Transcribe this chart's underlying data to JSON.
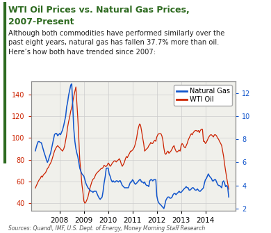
{
  "title_line1": "WTI Oil Prices vs. Natural Gas Prices,",
  "title_line2": "2007-Present",
  "subtitle": "Although both commodities have performed similarly over the\npast eight years, natural gas has fallen 37.7% more than oil.\nHere’s how both have trended since 2007:",
  "source_text": "Sources: Quandl, IMF, U.S. Dept. of Energy, Money Morning Staff Research",
  "title_color": "#2d6a1f",
  "subtitle_color": "#222222",
  "source_color": "#555555",
  "wti_color": "#cc2200",
  "gas_color": "#1155cc",
  "left_axis_color": "#cc2200",
  "right_axis_color": "#1155cc",
  "ylim_left": [
    33,
    152
  ],
  "ylim_right": [
    1.8,
    13.0
  ],
  "yticks_left": [
    40,
    60,
    80,
    100,
    120,
    140
  ],
  "yticks_right": [
    2,
    4,
    6,
    8,
    10,
    12
  ],
  "bg_color": "#f0f0eb",
  "grid_color": "#cccccc",
  "left_border_color": "#2d6a1f",
  "legend_gas": "Natural Gas",
  "legend_wti": "WTI Oil",
  "xlim": [
    2006.83,
    2015.25
  ],
  "xticks": [
    2008,
    2009,
    2010,
    2011,
    2012,
    2013,
    2014
  ],
  "wti_data": {
    "x": [
      2007.0,
      2007.04,
      2007.08,
      2007.12,
      2007.17,
      2007.21,
      2007.25,
      2007.29,
      2007.33,
      2007.37,
      2007.42,
      2007.46,
      2007.5,
      2007.54,
      2007.58,
      2007.63,
      2007.67,
      2007.71,
      2007.75,
      2007.79,
      2007.83,
      2007.88,
      2007.92,
      2007.96,
      2008.0,
      2008.04,
      2008.08,
      2008.12,
      2008.17,
      2008.21,
      2008.25,
      2008.29,
      2008.33,
      2008.37,
      2008.42,
      2008.46,
      2008.5,
      2008.54,
      2008.58,
      2008.63,
      2008.67,
      2008.71,
      2008.75,
      2008.79,
      2008.83,
      2008.88,
      2008.92,
      2008.96,
      2009.0,
      2009.04,
      2009.08,
      2009.12,
      2009.17,
      2009.21,
      2009.25,
      2009.29,
      2009.33,
      2009.37,
      2009.42,
      2009.46,
      2009.5,
      2009.54,
      2009.58,
      2009.63,
      2009.67,
      2009.71,
      2009.75,
      2009.79,
      2009.83,
      2009.88,
      2009.92,
      2009.96,
      2010.0,
      2010.04,
      2010.08,
      2010.12,
      2010.17,
      2010.21,
      2010.25,
      2010.29,
      2010.33,
      2010.37,
      2010.42,
      2010.46,
      2010.5,
      2010.54,
      2010.58,
      2010.63,
      2010.67,
      2010.71,
      2010.75,
      2010.79,
      2010.83,
      2010.88,
      2010.92,
      2010.96,
      2011.0,
      2011.04,
      2011.08,
      2011.12,
      2011.17,
      2011.21,
      2011.25,
      2011.29,
      2011.33,
      2011.37,
      2011.42,
      2011.46,
      2011.5,
      2011.54,
      2011.58,
      2011.63,
      2011.67,
      2011.71,
      2011.75,
      2011.79,
      2011.83,
      2011.88,
      2011.92,
      2011.96,
      2012.0,
      2012.04,
      2012.08,
      2012.12,
      2012.17,
      2012.21,
      2012.25,
      2012.29,
      2012.33,
      2012.37,
      2012.42,
      2012.46,
      2012.5,
      2012.54,
      2012.58,
      2012.63,
      2012.67,
      2012.71,
      2012.75,
      2012.79,
      2012.83,
      2012.88,
      2012.92,
      2012.96,
      2013.0,
      2013.04,
      2013.08,
      2013.12,
      2013.17,
      2013.21,
      2013.25,
      2013.29,
      2013.33,
      2013.37,
      2013.42,
      2013.46,
      2013.5,
      2013.54,
      2013.58,
      2013.63,
      2013.67,
      2013.71,
      2013.75,
      2013.79,
      2013.83,
      2013.88,
      2013.92,
      2013.96,
      2014.0,
      2014.04,
      2014.08,
      2014.12,
      2014.17,
      2014.21,
      2014.25,
      2014.29,
      2014.33,
      2014.37,
      2014.42,
      2014.46,
      2014.5,
      2014.54,
      2014.58,
      2014.63,
      2014.67,
      2014.71,
      2014.75,
      2014.79,
      2014.83,
      2014.88,
      2014.92,
      2014.96
    ],
    "y": [
      54,
      56,
      58,
      60,
      62,
      63,
      65,
      64,
      66,
      67,
      68,
      70,
      72,
      73,
      75,
      77,
      79,
      82,
      85,
      88,
      90,
      92,
      93,
      92,
      91,
      90,
      89,
      88,
      90,
      93,
      98,
      103,
      110,
      115,
      120,
      125,
      128,
      133,
      138,
      143,
      147,
      133,
      118,
      100,
      80,
      68,
      57,
      50,
      42,
      40,
      41,
      43,
      46,
      50,
      54,
      57,
      60,
      62,
      63,
      65,
      67,
      68,
      69,
      70,
      71,
      72,
      72,
      73,
      75,
      74,
      74,
      75,
      77,
      76,
      74,
      75,
      77,
      78,
      79,
      79,
      78,
      79,
      80,
      81,
      79,
      76,
      74,
      76,
      78,
      81,
      83,
      82,
      84,
      86,
      88,
      88,
      89,
      90,
      92,
      95,
      100,
      106,
      110,
      113,
      112,
      107,
      100,
      95,
      88,
      89,
      90,
      91,
      93,
      94,
      96,
      95,
      95,
      97,
      98,
      97,
      101,
      103,
      104,
      104,
      104,
      102,
      98,
      91,
      86,
      85,
      87,
      88,
      86,
      87,
      88,
      90,
      92,
      93,
      90,
      88,
      87,
      88,
      89,
      88,
      93,
      95,
      94,
      92,
      91,
      93,
      95,
      98,
      100,
      102,
      104,
      103,
      105,
      106,
      107,
      107,
      106,
      107,
      105,
      107,
      108,
      108,
      97,
      97,
      95,
      96,
      98,
      100,
      102,
      103,
      103,
      102,
      101,
      103,
      103,
      102,
      100,
      99,
      97,
      95,
      93,
      88,
      83,
      76,
      70,
      63,
      58,
      53
    ]
  },
  "gas_data": {
    "x": [
      2007.0,
      2007.04,
      2007.08,
      2007.12,
      2007.17,
      2007.21,
      2007.25,
      2007.29,
      2007.33,
      2007.37,
      2007.42,
      2007.46,
      2007.5,
      2007.54,
      2007.58,
      2007.63,
      2007.67,
      2007.71,
      2007.75,
      2007.79,
      2007.83,
      2007.88,
      2007.92,
      2007.96,
      2008.0,
      2008.04,
      2008.08,
      2008.12,
      2008.17,
      2008.21,
      2008.25,
      2008.29,
      2008.33,
      2008.37,
      2008.42,
      2008.46,
      2008.5,
      2008.54,
      2008.58,
      2008.63,
      2008.67,
      2008.71,
      2008.75,
      2008.79,
      2008.83,
      2008.88,
      2008.92,
      2008.96,
      2009.0,
      2009.04,
      2009.08,
      2009.12,
      2009.17,
      2009.21,
      2009.25,
      2009.29,
      2009.33,
      2009.37,
      2009.42,
      2009.46,
      2009.5,
      2009.54,
      2009.58,
      2009.63,
      2009.67,
      2009.71,
      2009.75,
      2009.79,
      2009.83,
      2009.88,
      2009.92,
      2009.96,
      2010.0,
      2010.04,
      2010.08,
      2010.12,
      2010.17,
      2010.21,
      2010.25,
      2010.29,
      2010.33,
      2010.37,
      2010.42,
      2010.46,
      2010.5,
      2010.54,
      2010.58,
      2010.63,
      2010.67,
      2010.71,
      2010.75,
      2010.79,
      2010.83,
      2010.88,
      2010.92,
      2010.96,
      2011.0,
      2011.04,
      2011.08,
      2011.12,
      2011.17,
      2011.21,
      2011.25,
      2011.29,
      2011.33,
      2011.37,
      2011.42,
      2011.46,
      2011.5,
      2011.54,
      2011.58,
      2011.63,
      2011.67,
      2011.71,
      2011.75,
      2011.79,
      2011.83,
      2011.88,
      2011.92,
      2011.96,
      2012.0,
      2012.04,
      2012.08,
      2012.12,
      2012.17,
      2012.21,
      2012.25,
      2012.29,
      2012.33,
      2012.37,
      2012.42,
      2012.46,
      2012.5,
      2012.54,
      2012.58,
      2012.63,
      2012.67,
      2012.71,
      2012.75,
      2012.79,
      2012.83,
      2012.88,
      2012.92,
      2012.96,
      2013.0,
      2013.04,
      2013.08,
      2013.12,
      2013.17,
      2013.21,
      2013.25,
      2013.29,
      2013.33,
      2013.37,
      2013.42,
      2013.46,
      2013.5,
      2013.54,
      2013.58,
      2013.63,
      2013.67,
      2013.71,
      2013.75,
      2013.79,
      2013.83,
      2013.88,
      2013.92,
      2013.96,
      2014.0,
      2014.04,
      2014.08,
      2014.12,
      2014.17,
      2014.21,
      2014.25,
      2014.29,
      2014.33,
      2014.37,
      2014.42,
      2014.46,
      2014.5,
      2014.54,
      2014.58,
      2014.63,
      2014.67,
      2014.71,
      2014.75,
      2014.79,
      2014.83,
      2014.88,
      2014.92,
      2014.96
    ],
    "y": [
      7.0,
      7.3,
      7.6,
      7.8,
      7.8,
      7.7,
      7.7,
      7.4,
      7.1,
      6.8,
      6.5,
      6.2,
      6.0,
      6.2,
      6.5,
      6.8,
      7.2,
      7.6,
      8.0,
      8.4,
      8.5,
      8.5,
      8.3,
      8.4,
      8.5,
      8.4,
      8.6,
      8.8,
      9.2,
      9.6,
      10.0,
      10.8,
      11.2,
      11.8,
      12.3,
      12.7,
      12.8,
      11.0,
      9.0,
      7.8,
      7.2,
      6.8,
      6.5,
      6.0,
      5.5,
      5.2,
      5.0,
      4.9,
      4.8,
      4.5,
      4.2,
      4.0,
      3.8,
      3.7,
      3.6,
      3.5,
      3.5,
      3.4,
      3.5,
      3.5,
      3.5,
      3.3,
      3.1,
      2.9,
      2.8,
      2.9,
      3.0,
      3.5,
      4.2,
      4.8,
      5.5,
      5.5,
      5.5,
      5.0,
      4.8,
      4.5,
      4.3,
      4.4,
      4.3,
      4.3,
      4.4,
      4.4,
      4.3,
      4.4,
      4.4,
      4.2,
      4.0,
      3.9,
      3.8,
      3.8,
      3.8,
      3.8,
      3.8,
      4.1,
      4.3,
      4.3,
      4.5,
      4.4,
      4.2,
      4.1,
      4.2,
      4.3,
      4.4,
      4.5,
      4.5,
      4.3,
      4.3,
      4.2,
      4.3,
      4.1,
      4.0,
      4.0,
      3.9,
      4.4,
      4.5,
      4.5,
      4.4,
      4.5,
      4.5,
      4.5,
      3.1,
      2.7,
      2.5,
      2.4,
      2.3,
      2.2,
      2.1,
      2.0,
      2.3,
      2.7,
      2.9,
      3.0,
      3.0,
      2.9,
      2.9,
      3.0,
      3.2,
      3.3,
      3.3,
      3.2,
      3.3,
      3.4,
      3.5,
      3.4,
      3.4,
      3.5,
      3.6,
      3.7,
      3.8,
      3.9,
      3.8,
      3.8,
      3.6,
      3.6,
      3.7,
      3.8,
      3.8,
      3.7,
      3.6,
      3.6,
      3.7,
      3.6,
      3.5,
      3.5,
      3.6,
      3.7,
      3.8,
      4.2,
      4.5,
      4.6,
      4.8,
      5.0,
      4.8,
      4.7,
      4.6,
      4.4,
      4.4,
      4.5,
      4.5,
      4.3,
      4.1,
      4.0,
      4.0,
      3.9,
      3.8,
      4.3,
      4.4,
      4.2,
      3.9,
      4.0,
      3.8,
      3.0
    ]
  }
}
